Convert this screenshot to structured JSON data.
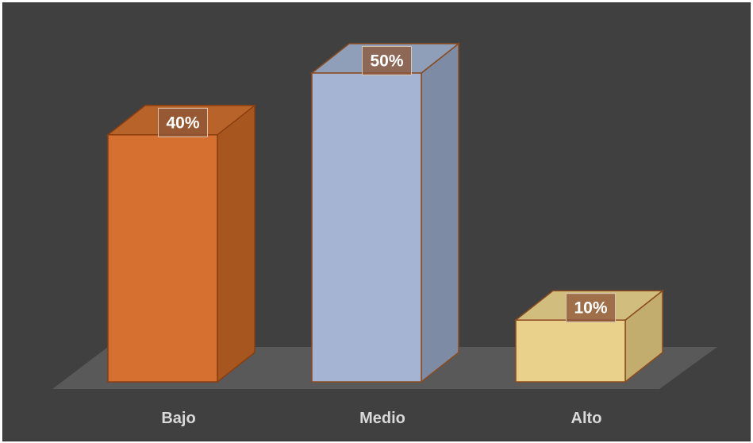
{
  "chart_data": {
    "type": "bar",
    "style": "3d-column",
    "categories": [
      "Bajo",
      "Medio",
      "Alto"
    ],
    "values": [
      40,
      50,
      10
    ],
    "data_labels": [
      "40%",
      "50%",
      "10%"
    ],
    "ylim": [
      0,
      50
    ],
    "grid": false,
    "legend": "none",
    "colors": {
      "background": "#404040",
      "floor": "#595959",
      "label_text": "#ffffff",
      "category_text": "#d9d9d9",
      "label_box": "rgba(140,85,55,0.75)",
      "bars": [
        {
          "front": "#D57030",
          "side": "#A8561F",
          "top": "#B8632A",
          "edge": "#8A3E10"
        },
        {
          "front": "#A4B4D2",
          "side": "#7E8BA5",
          "top": "#8F9EB9",
          "edge": "#8A4A20"
        },
        {
          "front": "#E9D18C",
          "side": "#C2AC6E",
          "top": "#D1BD7E",
          "edge": "#8A4A20"
        }
      ]
    }
  }
}
